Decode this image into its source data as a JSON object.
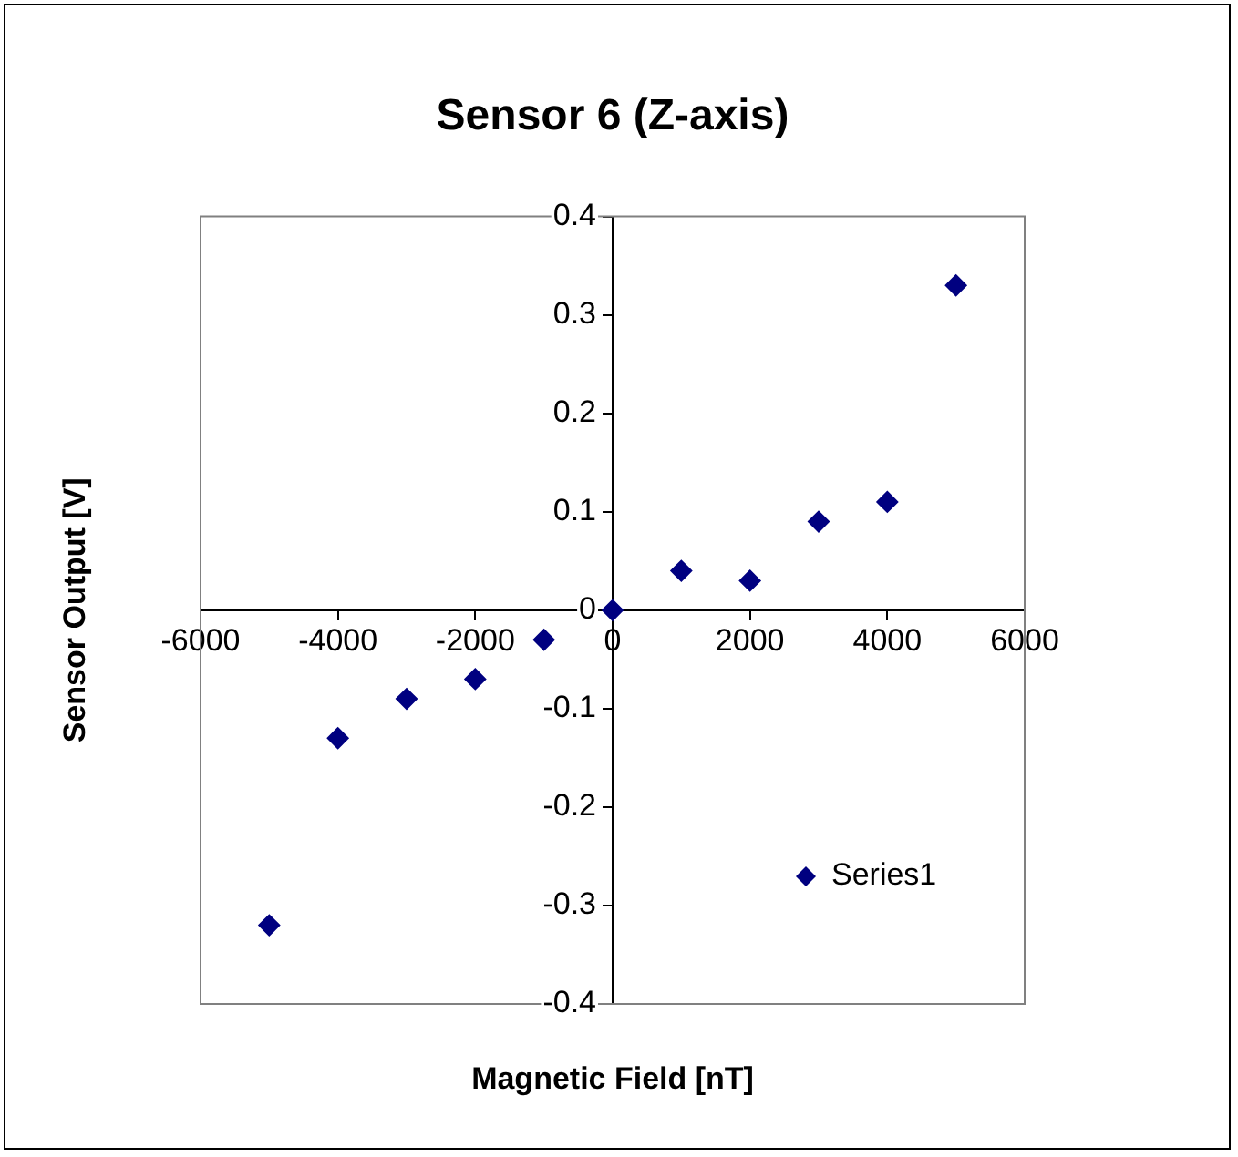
{
  "chart_data": {
    "type": "scatter",
    "title": "Sensor 6 (Z-axis)",
    "xlabel": "Magnetic Field [nT]",
    "ylabel": "Sensor Output [V]",
    "x": [
      -5000,
      -4000,
      -3000,
      -2000,
      -1000,
      0,
      1000,
      2000,
      3000,
      4000,
      5000
    ],
    "series": [
      {
        "name": "Series1",
        "color": "#000080",
        "values": [
          -0.32,
          -0.13,
          -0.09,
          -0.07,
          -0.03,
          0,
          0.04,
          0.03,
          0.09,
          0.11,
          0.33
        ]
      }
    ],
    "xlim": [
      -6000,
      6000
    ],
    "xticks": [
      -6000,
      -4000,
      -2000,
      0,
      2000,
      4000,
      6000
    ],
    "ylim": [
      -0.4,
      0.4
    ],
    "yticks": [
      -0.4,
      -0.3,
      -0.2,
      -0.1,
      0,
      0.1,
      0.2,
      0.3,
      0.4
    ],
    "grid": false,
    "legend": "bottom right",
    "marker": "diamond"
  }
}
